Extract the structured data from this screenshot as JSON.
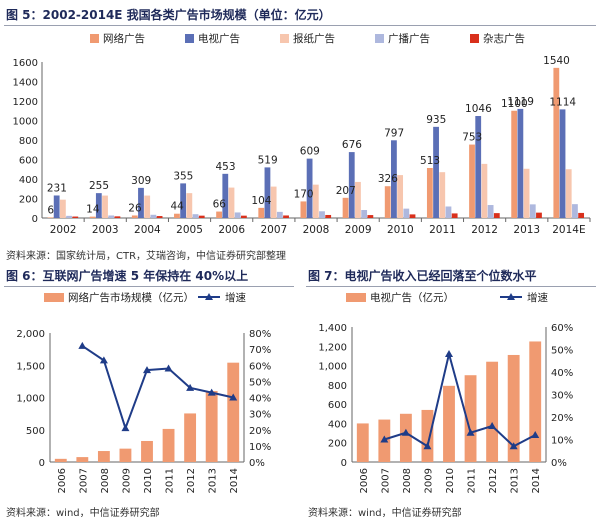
{
  "figures": [
    {
      "title": "图 5：2002-2014E 我国各类广告市场规模（单位：亿元）",
      "source": "资料来源：国家统计局，CTR，艾瑞咨询，中信证券研究部整理"
    },
    {
      "title": "图 6：互联网广告增速 5 年保持在 40%以上",
      "source": "资料来源：wind，中信证券研究部"
    },
    {
      "title": "图 7：电视广告收入已经回落至个位数水平",
      "source": "资料来源：wind，中信证券研究部"
    }
  ],
  "chart_data": [
    {
      "type": "bar",
      "title": "图 5：2002-2014E 我国各类广告市场规模（单位：亿元）",
      "categories": [
        "2002",
        "2003",
        "2004",
        "2005",
        "2006",
        "2007",
        "2008",
        "2009",
        "2010",
        "2011",
        "2012",
        "2013",
        "2014E"
      ],
      "ylim": [
        0,
        1600
      ],
      "yticks": [
        0,
        200,
        400,
        600,
        800,
        1000,
        1200,
        1400,
        1600
      ],
      "legend_position": "top",
      "series": [
        {
          "name": "网络广告",
          "color": "#f09a71",
          "values": [
            6,
            14,
            26,
            44,
            66,
            104,
            170,
            207,
            326,
            513,
            753,
            1100,
            1540
          ]
        },
        {
          "name": "电视广告",
          "color": "#5b6fb6",
          "values": [
            231,
            255,
            309,
            355,
            453,
            519,
            609,
            676,
            797,
            935,
            1046,
            1119,
            1114
          ]
        },
        {
          "name": "报纸广告",
          "color": "#f7c6ae",
          "values": [
            188,
            230,
            230,
            255,
            312,
            322,
            342,
            370,
            440,
            470,
            555,
            505,
            500
          ]
        },
        {
          "name": "广播广告",
          "color": "#aeb8de",
          "values": [
            22,
            26,
            33,
            39,
            57,
            63,
            69,
            82,
            96,
            118,
            133,
            140,
            142
          ]
        },
        {
          "name": "杂志广告",
          "color": "#d9301c",
          "values": [
            15,
            17,
            20,
            24,
            24,
            26,
            31,
            30,
            37,
            47,
            50,
            55,
            52
          ]
        }
      ],
      "labels": [
        {
          "series": "电视广告",
          "values": [
            231,
            255,
            309,
            355,
            453,
            519,
            609,
            676,
            797,
            935,
            1046,
            1119,
            1114
          ]
        },
        {
          "series": "网络广告",
          "values": [
            6,
            14,
            26,
            44,
            66,
            104,
            170,
            207,
            326,
            513,
            753,
            1100,
            1540
          ]
        }
      ]
    },
    {
      "type": "bar",
      "title": "图 6：互联网广告增速 5 年保持在 40%以上",
      "categories": [
        "2006",
        "2007",
        "2008",
        "2009",
        "2010",
        "2011",
        "2012",
        "2013",
        "2014"
      ],
      "ylim": [
        0,
        2000
      ],
      "yticks": [
        0,
        500,
        1000,
        1500,
        2000
      ],
      "y2lim": [
        0,
        80
      ],
      "y2ticks": [
        "0%",
        "10%",
        "20%",
        "30%",
        "40%",
        "50%",
        "60%",
        "70%",
        "80%"
      ],
      "legend_position": "top",
      "series": [
        {
          "name": "网络广告市场规模（亿元）",
          "kind": "bar",
          "axis": "left",
          "color": "#f09a71",
          "values": [
            49,
            76,
            170,
            207,
            326,
            513,
            753,
            1100,
            1540
          ]
        },
        {
          "name": "增速",
          "kind": "line",
          "axis": "right",
          "color": "#1f3c88",
          "values": [
            null,
            72,
            63,
            21,
            57,
            58,
            46,
            43,
            40
          ]
        }
      ]
    },
    {
      "type": "bar",
      "title": "图 7：电视广告收入已经回落至个位数水平",
      "categories": [
        "2006",
        "2007",
        "2008",
        "2009",
        "2010",
        "2011",
        "2012",
        "2013",
        "2014"
      ],
      "ylim": [
        0,
        1400
      ],
      "yticks": [
        0,
        200,
        400,
        600,
        800,
        1000,
        1200,
        1400
      ],
      "y2lim": [
        0,
        60
      ],
      "y2ticks": [
        "0%",
        "10%",
        "20%",
        "30%",
        "40%",
        "50%",
        "60%"
      ],
      "legend_position": "top",
      "series": [
        {
          "name": "电视广告（亿元）",
          "kind": "bar",
          "axis": "left",
          "color": "#f09a71",
          "values": [
            400,
            440,
            500,
            540,
            790,
            900,
            1040,
            1110,
            1250
          ]
        },
        {
          "name": "增速",
          "kind": "line",
          "axis": "right",
          "color": "#1f3c88",
          "values": [
            null,
            10,
            13,
            7,
            48,
            13,
            16,
            7,
            12
          ]
        }
      ]
    }
  ]
}
